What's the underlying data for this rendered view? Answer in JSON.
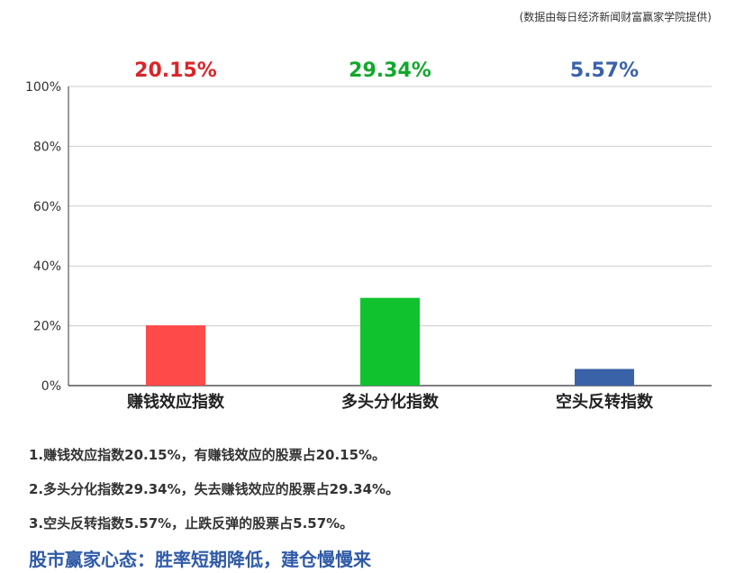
{
  "source": "(数据由每日经济新闻财富赢家学院提供)",
  "chart_data": {
    "type": "bar",
    "categories": [
      "赚钱效应指数",
      "多头分化指数",
      "空头反转指数"
    ],
    "values": [
      20.15,
      29.34,
      5.57
    ],
    "value_labels": [
      "20.15%",
      "29.34%",
      "5.57%"
    ],
    "colors": [
      "#ff4a4a",
      "#11c22f",
      "#3a62a8"
    ],
    "label_colors": [
      "#d8262a",
      "#12a82c",
      "#3a62a8"
    ],
    "ylim": [
      0,
      100
    ],
    "yticks": [
      0,
      20,
      40,
      60,
      80,
      100
    ],
    "ytick_labels": [
      "0%",
      "20%",
      "40%",
      "60%",
      "80%",
      "100%"
    ],
    "grid": true
  },
  "notes": [
    "1.赚钱效应指数20.15%，有赚钱效应的股票占20.15%。",
    "2.多头分化指数29.34%，失去赚钱效应的股票占29.34%。",
    "3.空头反转指数5.57%，止跌反弹的股票占5.57%。"
  ],
  "headline": "股市赢家心态：胜率短期降低，建仓慢慢来"
}
